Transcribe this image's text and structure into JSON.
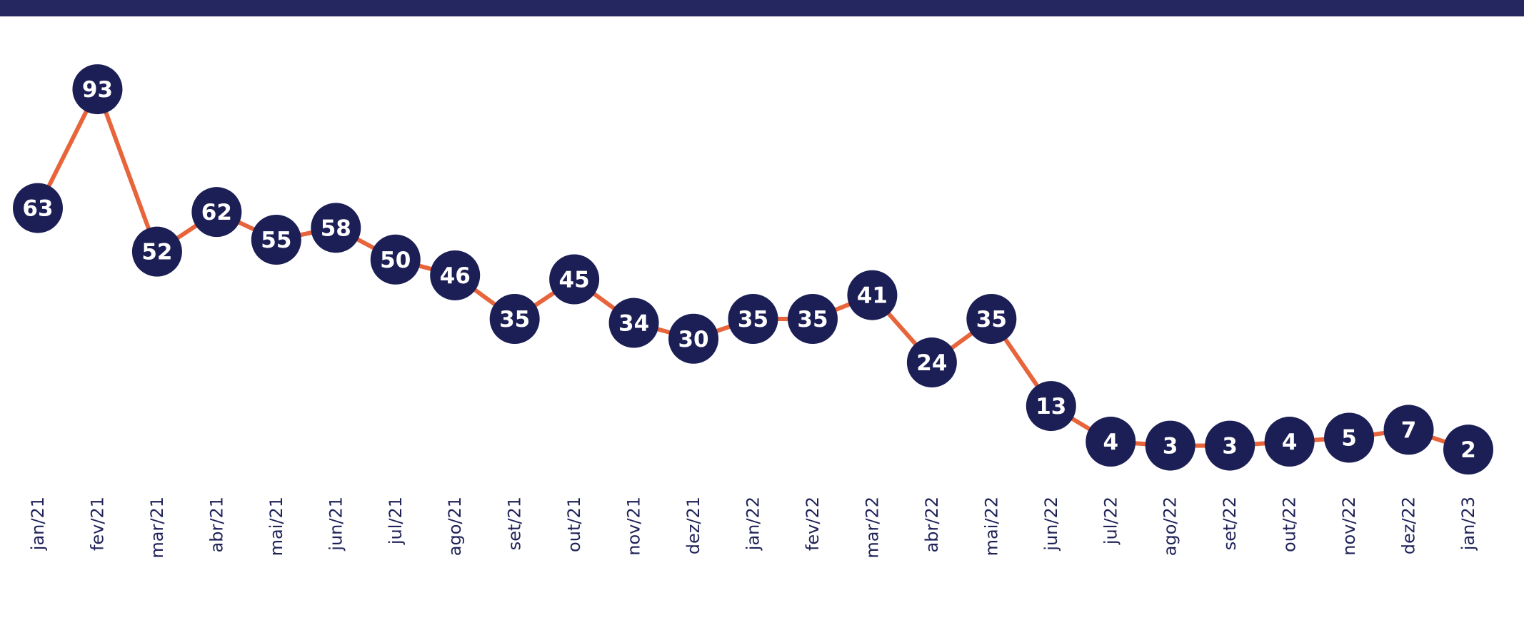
{
  "chart_data": {
    "type": "line",
    "categories": [
      "jan/21",
      "fev/21",
      "mar/21",
      "abr/21",
      "mai/21",
      "jun/21",
      "jul/21",
      "ago/21",
      "set/21",
      "out/21",
      "nov/21",
      "dez/21",
      "jan/22",
      "fev/22",
      "mar/22",
      "abr/22",
      "mai/22",
      "jun/22",
      "jul/22",
      "ago/22",
      "set/22",
      "out/22",
      "nov/22",
      "dez/22",
      "jan/23"
    ],
    "series": [
      {
        "color": "#e8643a",
        "marker_color": "#1c1f55",
        "values": [
          63,
          93,
          52,
          62,
          55,
          58,
          50,
          46,
          35,
          45,
          34,
          30,
          35,
          35,
          41,
          24,
          35,
          13,
          4,
          3,
          3,
          4,
          5,
          7,
          2
        ]
      }
    ],
    "ylim": [
      -5,
      95
    ]
  }
}
